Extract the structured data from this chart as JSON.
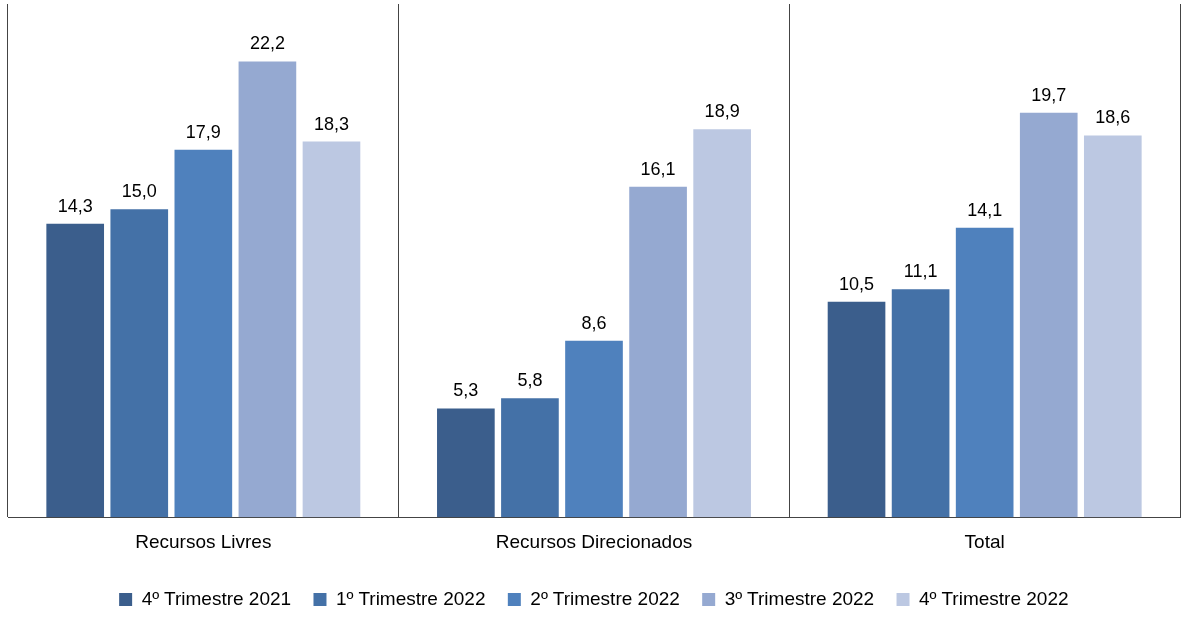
{
  "chart_data": {
    "type": "bar",
    "categories": [
      "Recursos Livres",
      "Recursos Direcionados",
      "Total"
    ],
    "series": [
      {
        "name": "4º Trimestre 2021",
        "color": "#3b5e8c",
        "values": [
          14.3,
          5.3,
          10.5
        ],
        "value_labels": [
          "14,3",
          "5,3",
          "10,5"
        ]
      },
      {
        "name": "1º Trimestre 2022",
        "color": "#4471a7",
        "values": [
          15.0,
          5.8,
          11.1
        ],
        "value_labels": [
          "15,0",
          "5,8",
          "11,1"
        ]
      },
      {
        "name": "2º Trimestre 2022",
        "color": "#4f81bd",
        "values": [
          17.9,
          8.6,
          14.1
        ],
        "value_labels": [
          "17,9",
          "8,6",
          "14,1"
        ]
      },
      {
        "name": "3º Trimestre 2022",
        "color": "#95a9d1",
        "values": [
          22.2,
          16.1,
          19.7
        ],
        "value_labels": [
          "22,2",
          "16,1",
          "19,7"
        ]
      },
      {
        "name": "4º Trimestre 2022",
        "color": "#bcc8e2",
        "values": [
          18.3,
          18.9,
          18.6
        ],
        "value_labels": [
          "18,3",
          "18,9",
          "18,6"
        ]
      }
    ],
    "tick_labels": "x",
    "grid": "x",
    "legend": "bottom"
  }
}
